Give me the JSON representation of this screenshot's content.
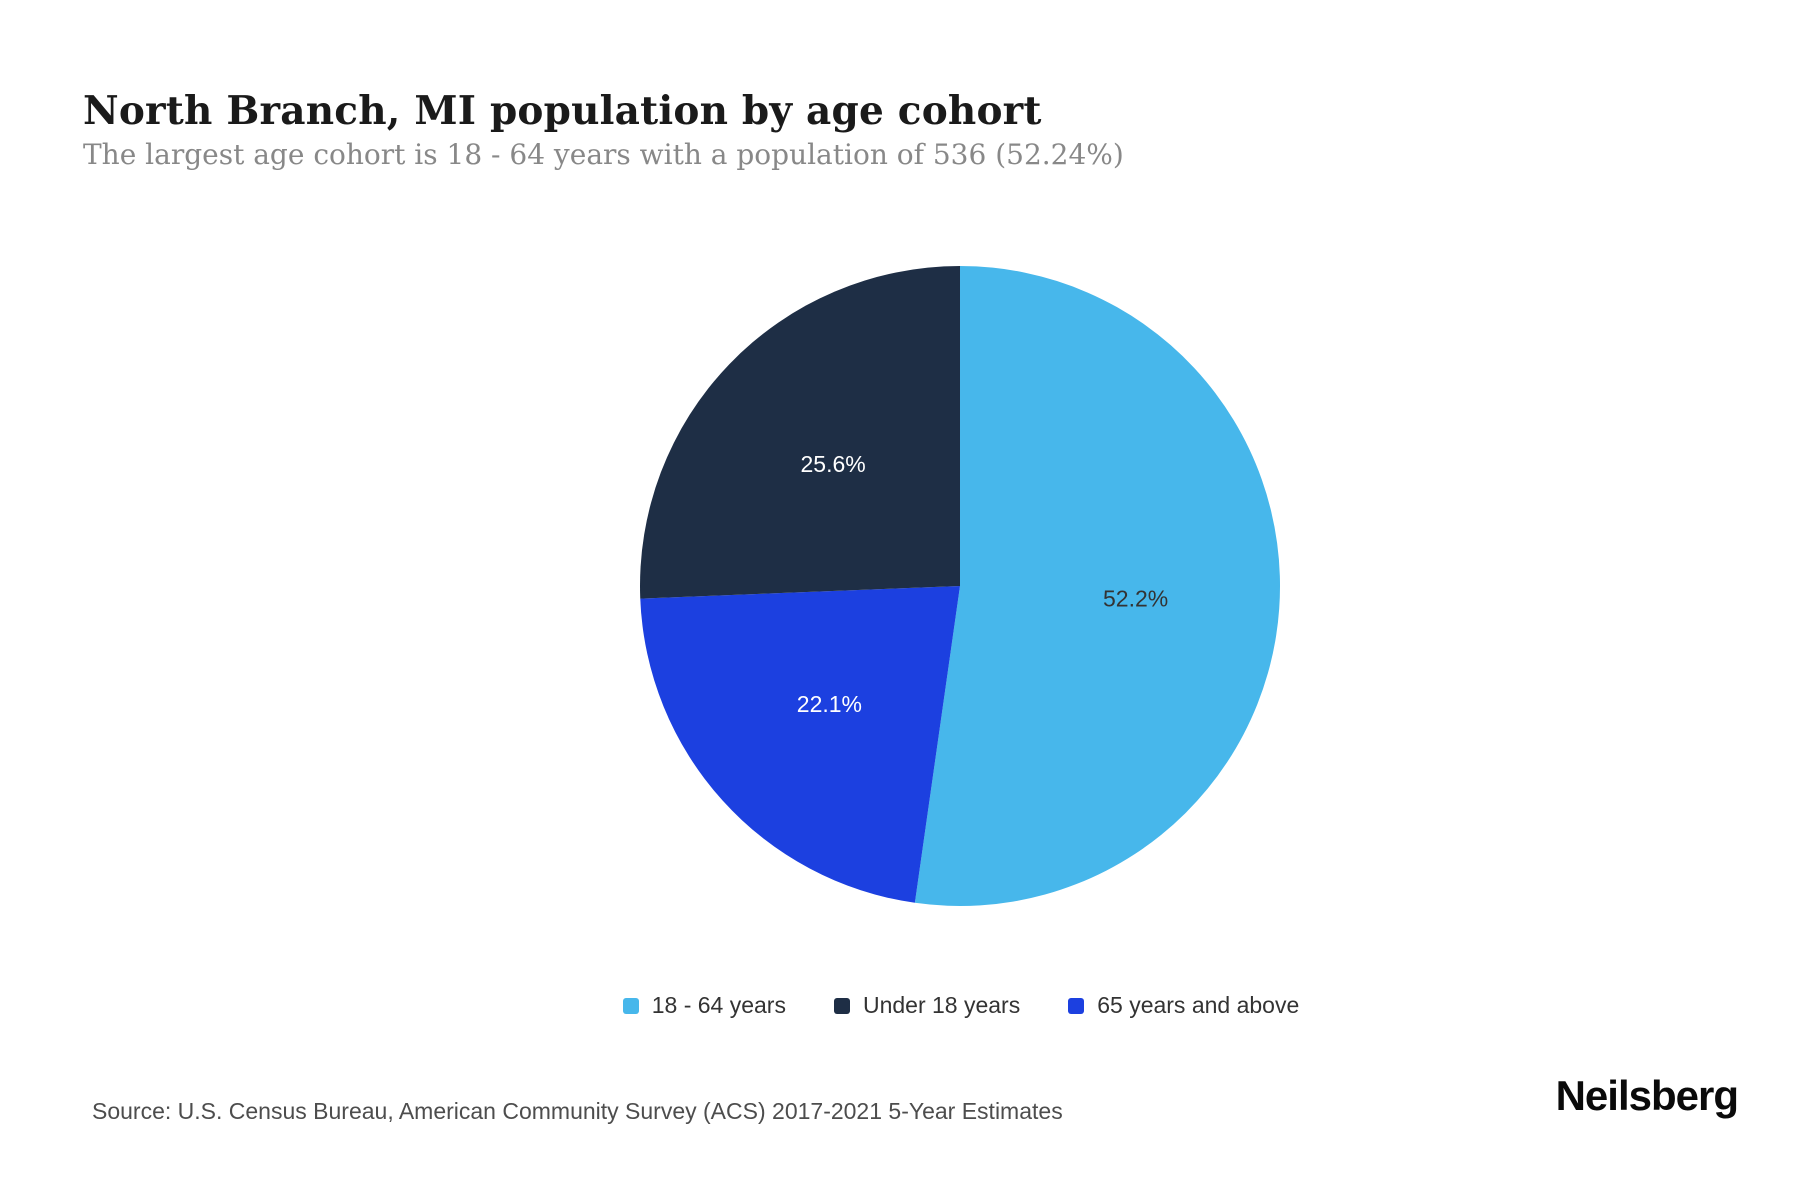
{
  "header": {
    "title": "North Branch, MI population by age cohort",
    "subtitle": "The largest age cohort is 18 - 64 years with a population of 536 (52.24%)"
  },
  "chart_data": {
    "type": "pie",
    "title": "North Branch, MI population by age cohort",
    "start_angle_deg": 0,
    "direction": "clockwise",
    "legend_position": "bottom",
    "slices": [
      {
        "label": "18 - 64 years",
        "value": 52.2,
        "display": "52.2%",
        "color": "#47b7eb",
        "label_color": "#333333"
      },
      {
        "label": "65 years and above",
        "value": 22.1,
        "display": "22.1%",
        "color": "#1c40e0",
        "label_color": "#ffffff"
      },
      {
        "label": "Under 18 years",
        "value": 25.6,
        "display": "25.6%",
        "color": "#1e2e45",
        "label_color": "#ffffff"
      }
    ]
  },
  "legend": {
    "items": [
      {
        "label": "18 - 64 years",
        "color": "#47b7eb"
      },
      {
        "label": "Under 18 years",
        "color": "#1e2e45"
      },
      {
        "label": "65 years and above",
        "color": "#1c40e0"
      }
    ]
  },
  "footer": {
    "source": "Source: U.S. Census Bureau, American Community Survey (ACS) 2017-2021 5-Year Estimates",
    "brand": "Neilsberg"
  }
}
